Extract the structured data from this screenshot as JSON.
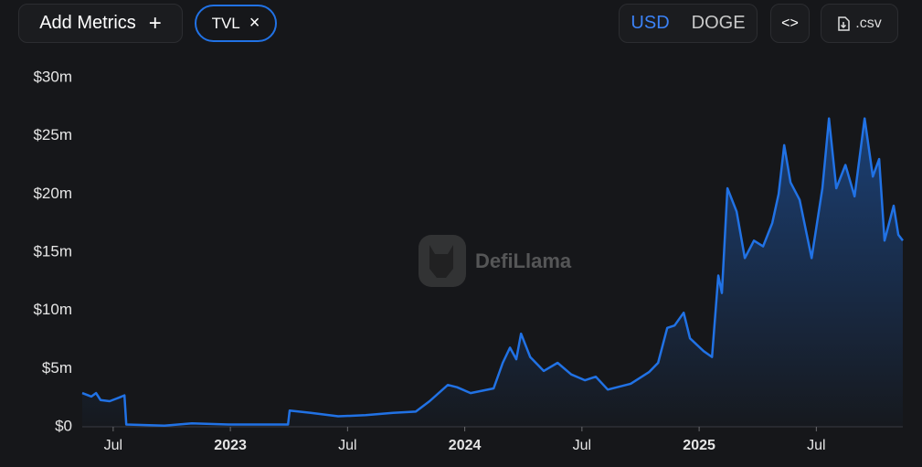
{
  "toolbar": {
    "add_metrics": "Add Metrics",
    "metric": "TVL",
    "currencies": [
      "USD",
      "DOGE"
    ],
    "download": ".csv"
  },
  "chart_data": {
    "type": "area",
    "watermark": "DefiLlama",
    "color": "#2172e5",
    "x": [
      2022.368,
      2022.407,
      2022.427,
      2022.446,
      2022.485,
      2022.524,
      2022.548,
      2022.556,
      2022.719,
      2022.836,
      2022.992,
      2023.187,
      2023.246,
      2023.253,
      2023.343,
      2023.46,
      2023.577,
      2023.694,
      2023.791,
      2023.85,
      2023.928,
      2023.967,
      2024.025,
      2024.123,
      2024.162,
      2024.193,
      2024.22,
      2024.24,
      2024.279,
      2024.337,
      2024.396,
      2024.454,
      2024.513,
      2024.559,
      2024.61,
      2024.708,
      2024.786,
      2024.825,
      2024.864,
      2024.895,
      2024.934,
      2024.961,
      2025.019,
      2025.055,
      2025.082,
      2025.097,
      2025.121,
      2025.16,
      2025.195,
      2025.234,
      2025.273,
      2025.312,
      2025.339,
      2025.363,
      2025.39,
      2025.429,
      2025.48,
      2025.526,
      2025.554,
      2025.585,
      2025.624,
      2025.663,
      2025.706,
      2025.741,
      2025.768,
      2025.791,
      2025.83,
      2025.85,
      2025.869
    ],
    "values": [
      2.9,
      2.6,
      2.9,
      2.3,
      2.2,
      2.5,
      2.7,
      0.2,
      0.1,
      0.3,
      0.2,
      0.2,
      0.2,
      1.4,
      1.2,
      0.9,
      1.0,
      1.2,
      1.3,
      2.2,
      3.6,
      3.4,
      2.9,
      3.3,
      5.5,
      6.8,
      5.8,
      8.0,
      6.0,
      4.8,
      5.5,
      4.5,
      4.0,
      4.3,
      3.2,
      3.7,
      4.7,
      5.5,
      8.5,
      8.7,
      9.8,
      7.6,
      6.5,
      6.0,
      13.0,
      11.5,
      20.5,
      18.5,
      14.5,
      16.0,
      15.5,
      17.5,
      20.0,
      24.2,
      21.0,
      19.5,
      14.5,
      20.5,
      26.5,
      20.5,
      22.5,
      19.8,
      26.5,
      21.5,
      23.0,
      16.0,
      19.0,
      16.5,
      16.0
    ],
    "xlim": [
      2022.368,
      2025.869
    ],
    "xticks": [
      {
        "value": 2022.5,
        "label": "Jul"
      },
      2023,
      {
        "value": 2023.5,
        "label": "Jul"
      },
      2024,
      {
        "value": 2024.5,
        "label": "Jul"
      },
      2025,
      {
        "value": 2025.5,
        "label": "Jul"
      }
    ],
    "ylim": [
      0,
      30
    ],
    "yticks": [
      {
        "value": 0,
        "label": "$0"
      },
      {
        "value": 5,
        "label": "$5m"
      },
      {
        "value": 10,
        "label": "$10m"
      },
      {
        "value": 15,
        "label": "$15m"
      },
      {
        "value": 20,
        "label": "$20m"
      },
      {
        "value": 25,
        "label": "$25m"
      },
      {
        "value": 30,
        "label": "$30m"
      }
    ]
  }
}
